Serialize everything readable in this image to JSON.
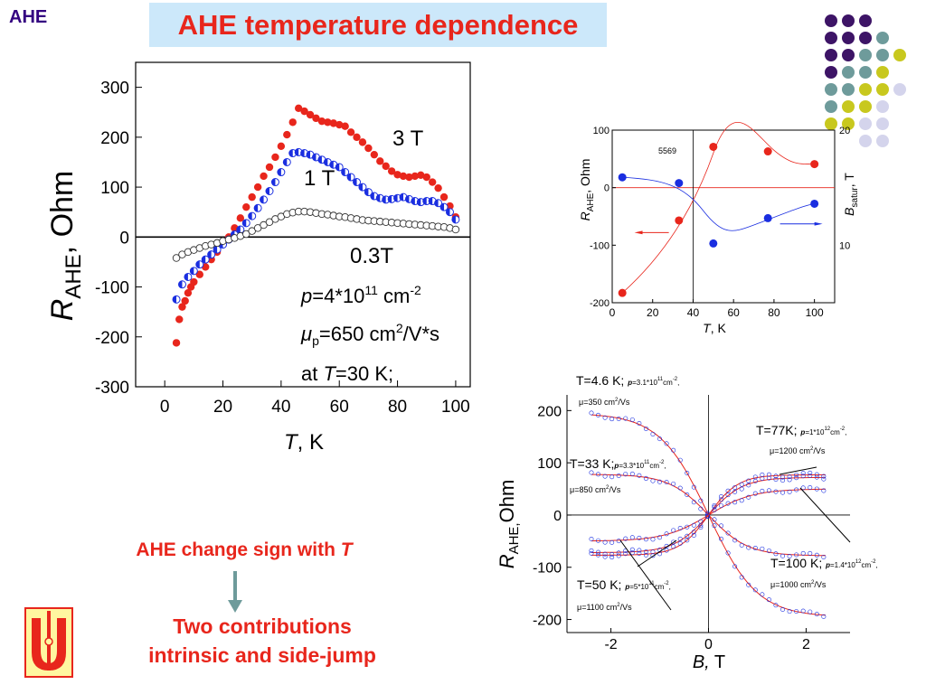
{
  "slide": {
    "tag": "AHE",
    "title": "AHE temperature dependence",
    "caption_main": "AHE change sign with ",
    "caption_main_T": "T",
    "caption_sub_1": "Two contributions",
    "caption_sub_2": "intrinsic and side-jump"
  },
  "colors": {
    "red": "#e8261c",
    "blue": "#1a2ee0",
    "title_bg": "#cce8fa",
    "purple": "#3d1466",
    "teal": "#6e9b9b",
    "yellow": "#c8c81e",
    "lavender": "#d4d4ec",
    "logo": "#e8261c"
  },
  "chart_data": [
    {
      "type": "scatter",
      "ylabel_main": "R",
      "ylabel_sub": "AHE",
      "ylabel_rest": ", Ohm",
      "xlabel_italic": "T",
      "xlabel_rest": ", K",
      "xlim": [
        -10,
        105
      ],
      "ylim": [
        -300,
        350
      ],
      "xticks": [
        0,
        20,
        40,
        60,
        80,
        100
      ],
      "yticks": [
        -300,
        -200,
        -100,
        0,
        100,
        200,
        300
      ],
      "series": [
        {
          "name": "3 T",
          "color": "#e8261c",
          "style": "filled",
          "x": [
            4,
            5,
            6,
            7,
            8,
            9,
            10,
            12,
            14,
            16,
            18,
            20,
            22,
            24,
            26,
            28,
            30,
            32,
            34,
            36,
            38,
            40,
            42,
            44,
            46,
            48,
            50,
            52,
            54,
            56,
            58,
            60,
            62,
            64,
            66,
            68,
            70,
            72,
            74,
            76,
            78,
            80,
            82,
            84,
            86,
            88,
            90,
            92,
            94,
            96,
            98,
            100
          ],
          "y": [
            -212,
            -165,
            -140,
            -128,
            -112,
            -100,
            -90,
            -75,
            -60,
            -45,
            -30,
            -15,
            0,
            18,
            38,
            60,
            80,
            100,
            122,
            140,
            160,
            182,
            205,
            230,
            258,
            252,
            245,
            238,
            232,
            230,
            228,
            225,
            222,
            210,
            200,
            190,
            178,
            165,
            152,
            142,
            132,
            125,
            122,
            120,
            122,
            124,
            120,
            110,
            98,
            80,
            62,
            40
          ]
        },
        {
          "name": "1 T",
          "color": "#1a2ee0",
          "style": "half",
          "x": [
            4,
            6,
            8,
            10,
            12,
            14,
            16,
            18,
            20,
            22,
            24,
            26,
            28,
            30,
            32,
            34,
            36,
            38,
            40,
            42,
            44,
            46,
            48,
            50,
            52,
            54,
            56,
            58,
            60,
            62,
            64,
            66,
            68,
            70,
            72,
            74,
            76,
            78,
            80,
            82,
            84,
            86,
            88,
            90,
            92,
            94,
            96,
            98,
            100
          ],
          "y": [
            -125,
            -95,
            -80,
            -68,
            -55,
            -45,
            -35,
            -25,
            -15,
            -5,
            5,
            15,
            28,
            42,
            58,
            75,
            92,
            110,
            130,
            150,
            168,
            170,
            168,
            165,
            160,
            155,
            150,
            145,
            140,
            130,
            120,
            110,
            100,
            90,
            82,
            78,
            75,
            76,
            78,
            80,
            76,
            72,
            70,
            72,
            72,
            68,
            60,
            50,
            35
          ]
        },
        {
          "name": "0.3T",
          "color": "#333333",
          "style": "open",
          "x": [
            4,
            6,
            8,
            10,
            12,
            14,
            16,
            18,
            20,
            22,
            24,
            26,
            28,
            30,
            32,
            34,
            36,
            38,
            40,
            42,
            44,
            46,
            48,
            50,
            52,
            54,
            56,
            58,
            60,
            62,
            64,
            66,
            68,
            70,
            72,
            74,
            76,
            78,
            80,
            82,
            84,
            86,
            88,
            90,
            92,
            94,
            96,
            98,
            100
          ],
          "y": [
            -42,
            -35,
            -30,
            -26,
            -22,
            -18,
            -15,
            -12,
            -8,
            -5,
            -2,
            2,
            6,
            12,
            18,
            24,
            30,
            36,
            41,
            46,
            49,
            51,
            51,
            50,
            48,
            46,
            45,
            43,
            41,
            40,
            38,
            36,
            34,
            33,
            32,
            31,
            30,
            29,
            28,
            27,
            26,
            25,
            24,
            23,
            22,
            21,
            20,
            18,
            15
          ]
        }
      ],
      "annotations": {
        "label_3T": "3 T",
        "label_1T": "1 T",
        "label_03T": "0.3T",
        "p_label": "p",
        "p_value": "=4*10",
        "p_exp": "11",
        "p_unit": " cm",
        "p_unit_exp": "-2",
        "mu_label": "μ",
        "mu_sub": "p",
        "mu_value": "=650 cm",
        "mu_exp": "2",
        "mu_unit": "/V*s",
        "at_prefix": "at ",
        "at_T": "T",
        "at_value": "=30 K;"
      }
    },
    {
      "type": "scatter",
      "ylabel_main": "R",
      "ylabel_sub": "AHE",
      "ylabel_rest": ", Ohm",
      "y2label_main": "B",
      "y2label_sub": "satur",
      "y2label_rest": ", T",
      "xlabel_italic": "T",
      "xlabel_rest": ", K",
      "xlim": [
        0,
        110
      ],
      "ylim": [
        -200,
        100
      ],
      "xticks": [
        0,
        20,
        40,
        60,
        80,
        100
      ],
      "yticks": [
        -200,
        -100,
        0,
        100
      ],
      "y2ticks": [
        20,
        10
      ],
      "sample_label": "5569",
      "series": [
        {
          "name": "R_AHE",
          "color": "#e8261c",
          "x": [
            5,
            33,
            50,
            77,
            100
          ],
          "y": [
            -183,
            -57,
            71,
            63,
            41
          ]
        },
        {
          "name": "B_satur",
          "color": "#1a2ee0",
          "x": [
            5,
            33,
            50,
            77,
            100
          ],
          "y": [
            18,
            8,
            -97,
            -53,
            -28
          ]
        }
      ]
    },
    {
      "type": "line",
      "ylabel_main": "R",
      "ylabel_sub": "AHE,",
      "ylabel_rest": "Ohm",
      "xlabel_italic": "B,",
      "xlabel_rest": " T",
      "xlim": [
        -2.9,
        2.9
      ],
      "ylim": [
        -225,
        230
      ],
      "xticks": [
        -2,
        0,
        2
      ],
      "yticks": [
        -200,
        -100,
        0,
        100,
        200
      ],
      "curves": [
        {
          "name": "T=4.6 K",
          "sat": 195,
          "scale": 1.0
        },
        {
          "name": "T=33 K",
          "sat": 78,
          "scale": 0.8
        },
        {
          "name": "T=50 K",
          "sat": -72,
          "scale": 0.7
        },
        {
          "name": "T=77K",
          "sat": -77,
          "scale": 0.6
        },
        {
          "name": "T=100 K",
          "sat": -50,
          "scale": 0.9
        }
      ],
      "labels": [
        {
          "id": "t46",
          "main": "T=4.6 K; ",
          "p": "p",
          "rest": "=3.1*10",
          "exp": "11",
          "unit": "cm",
          "uexp": "-2",
          "tail": ",",
          "mu": "μ",
          "mu_rest": "=350 cm",
          "mu_exp": "2",
          "mu_unit": "/Vs"
        },
        {
          "id": "t33",
          "main": "T=33 K;",
          "p": "p",
          "rest": "=3.3*10",
          "exp": "11",
          "unit": "cm",
          "uexp": "-2",
          "tail": ",",
          "mu": "μ",
          "mu_rest": "=850 cm",
          "mu_exp": "2",
          "mu_unit": "/Vs"
        },
        {
          "id": "t50",
          "main": "T=50 K; ",
          "p": "p",
          "rest": "=5*10",
          "exp": "11",
          "unit": "cm",
          "uexp": "-2",
          "tail": ",",
          "mu": "μ",
          "mu_rest": "=1100 cm",
          "mu_exp": "2",
          "mu_unit": "/Vs"
        },
        {
          "id": "t77",
          "main": "T=77K; ",
          "p": "p",
          "rest": "=1*10",
          "exp": "12",
          "unit": "cm",
          "uexp": "-2",
          "tail": ",",
          "mu": "μ",
          "mu_rest": "=1200 cm",
          "mu_exp": "2",
          "mu_unit": "/Vs"
        },
        {
          "id": "t100",
          "main": "T=100 K; ",
          "p": "p",
          "rest": "=1.4*10",
          "exp": "12",
          "unit": "cm",
          "uexp": "-2",
          "tail": ",",
          "mu": "μ",
          "mu_rest": "=1000 cm",
          "mu_exp": "2",
          "mu_unit": "/Vs"
        }
      ]
    }
  ]
}
